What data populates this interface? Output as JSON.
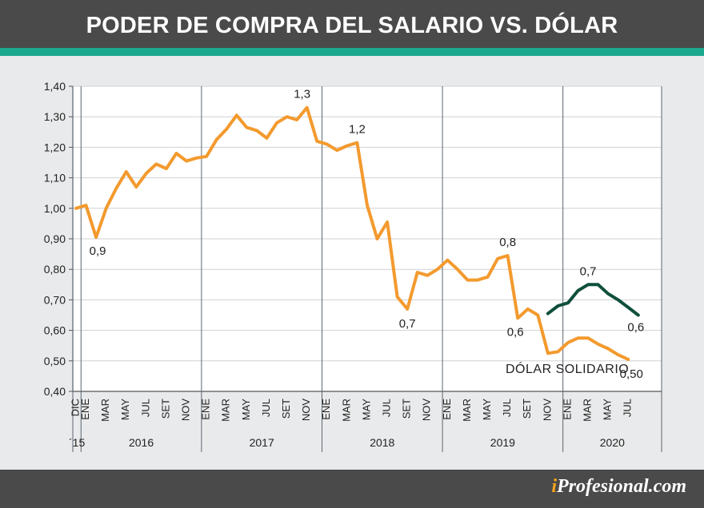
{
  "title": "PODER DE COMPRA DEL SALARIO VS. DÓLAR",
  "brand": {
    "prefix": "i",
    "name": "Profesional.com"
  },
  "colors": {
    "header": "#4a4a4a",
    "accent": "#1aa88f",
    "salary_line": "#f39a2e",
    "solidario_line": "#0f4f3c",
    "brand_i": "#f5a51c"
  },
  "chart_data": {
    "type": "line",
    "title": "PODER DE COMPRA DEL SALARIO VS. DÓLAR",
    "ylim": [
      0.4,
      1.4
    ],
    "yticks": [
      "0,40",
      "0,50",
      "0,60",
      "0,70",
      "0,80",
      "0,90",
      "1,00",
      "1,10",
      "1,20",
      "1,30",
      "1,40"
    ],
    "grid": true,
    "x": [
      "2015-12",
      "2016-01",
      "2016-02",
      "2016-03",
      "2016-04",
      "2016-05",
      "2016-06",
      "2016-07",
      "2016-08",
      "2016-09",
      "2016-10",
      "2016-11",
      "2016-12",
      "2017-01",
      "2017-02",
      "2017-03",
      "2017-04",
      "2017-05",
      "2017-06",
      "2017-07",
      "2017-08",
      "2017-09",
      "2017-10",
      "2017-11",
      "2017-12",
      "2018-01",
      "2018-02",
      "2018-03",
      "2018-04",
      "2018-05",
      "2018-06",
      "2018-07",
      "2018-08",
      "2018-09",
      "2018-10",
      "2018-11",
      "2018-12",
      "2019-01",
      "2019-02",
      "2019-03",
      "2019-04",
      "2019-05",
      "2019-06",
      "2019-07",
      "2019-08",
      "2019-09",
      "2019-10",
      "2019-11",
      "2019-12",
      "2020-01",
      "2020-02",
      "2020-03",
      "2020-04",
      "2020-05",
      "2020-06",
      "2020-07",
      "2020-08"
    ],
    "month_labels": [
      "DIC",
      "ENE",
      "MAR",
      "MAY",
      "JUL",
      "SET",
      "NOV",
      "ENE",
      "MAR",
      "MAY",
      "JUL",
      "SET",
      "NOV",
      "ENE",
      "MAR",
      "MAY",
      "JUL",
      "SET",
      "NOV",
      "ENE",
      "MAR",
      "MAY",
      "JUL",
      "SET",
      "NOV",
      "ENE",
      "MAR",
      "MAY",
      "JUL"
    ],
    "month_label_x": [
      "2015-12",
      "2016-01",
      "2016-03",
      "2016-05",
      "2016-07",
      "2016-09",
      "2016-11",
      "2017-01",
      "2017-03",
      "2017-05",
      "2017-07",
      "2017-09",
      "2017-11",
      "2018-01",
      "2018-03",
      "2018-05",
      "2018-07",
      "2018-09",
      "2018-11",
      "2019-01",
      "2019-03",
      "2019-05",
      "2019-07",
      "2019-09",
      "2019-11",
      "2020-01",
      "2020-03",
      "2020-05",
      "2020-07"
    ],
    "year_labels": [
      "´15",
      "2016",
      "2017",
      "2018",
      "2019",
      "2020"
    ],
    "series": [
      {
        "name": "",
        "values": [
          1.0,
          1.01,
          0.905,
          1.0,
          1.065,
          1.12,
          1.07,
          1.115,
          1.145,
          1.13,
          1.18,
          1.155,
          1.165,
          1.17,
          1.225,
          1.26,
          1.305,
          1.265,
          1.255,
          1.23,
          1.28,
          1.3,
          1.29,
          1.33,
          1.22,
          1.21,
          1.19,
          1.205,
          1.215,
          1.01,
          0.9,
          0.955,
          0.71,
          0.67,
          0.79,
          0.78,
          0.8,
          0.83,
          0.8,
          0.765,
          0.765,
          0.775,
          0.835,
          0.845,
          0.64,
          0.67,
          0.65,
          0.525,
          0.53,
          0.56,
          0.575,
          0.575,
          0.555,
          0.54,
          0.52,
          0.505,
          null
        ]
      },
      {
        "name": "DÓLAR SOLIDARIO",
        "values": [
          null,
          null,
          null,
          null,
          null,
          null,
          null,
          null,
          null,
          null,
          null,
          null,
          null,
          null,
          null,
          null,
          null,
          null,
          null,
          null,
          null,
          null,
          null,
          null,
          null,
          null,
          null,
          null,
          null,
          null,
          null,
          null,
          null,
          null,
          null,
          null,
          null,
          null,
          null,
          null,
          null,
          null,
          null,
          null,
          null,
          null,
          null,
          0.655,
          0.68,
          0.69,
          0.73,
          0.75,
          0.75,
          0.72,
          0.7,
          0.675,
          0.65
        ]
      }
    ],
    "annotations": [
      "0,9",
      "1,3",
      "1,2",
      "0,7",
      "0,8",
      "0,6",
      "0,7",
      "0,6",
      "0,50"
    ]
  }
}
